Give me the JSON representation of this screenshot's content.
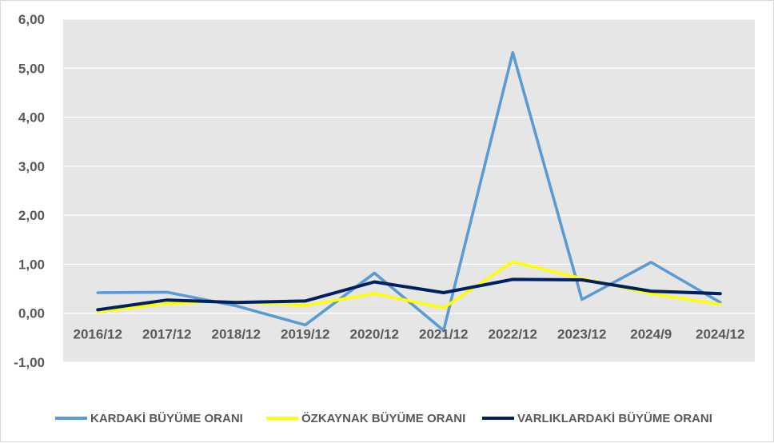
{
  "chart_data": {
    "type": "line",
    "categories": [
      "2016/12",
      "2017/12",
      "2018/12",
      "2019/12",
      "2020/12",
      "2021/12",
      "2022/12",
      "2023/12",
      "2024/9",
      "2024/12"
    ],
    "y_tick_labels": [
      "6,00",
      "5,00",
      "4,00",
      "3,00",
      "2,00",
      "1,00",
      "0,00",
      "-1,00"
    ],
    "y_ticks": [
      6,
      5,
      4,
      3,
      2,
      1,
      0,
      -1
    ],
    "ylim": [
      -1,
      6
    ],
    "grid": true,
    "legend_position": "bottom",
    "series": [
      {
        "name": "KARDAKİ BÜYÜME ORANI",
        "color": "#5b9bd5",
        "values": [
          0.42,
          0.43,
          0.15,
          -0.24,
          0.82,
          -0.35,
          5.32,
          0.28,
          1.04,
          0.22
        ]
      },
      {
        "name": "ÖZKAYNAK BÜYÜME ORANI",
        "color": "#ffff00",
        "values": [
          0.03,
          0.2,
          0.24,
          0.16,
          0.4,
          0.11,
          1.05,
          0.71,
          0.4,
          0.18
        ]
      },
      {
        "name": "VARLIKLARDAKİ BÜYÜME ORANI",
        "color": "#002060",
        "values": [
          0.07,
          0.27,
          0.22,
          0.25,
          0.64,
          0.42,
          0.69,
          0.68,
          0.45,
          0.4
        ]
      }
    ]
  }
}
